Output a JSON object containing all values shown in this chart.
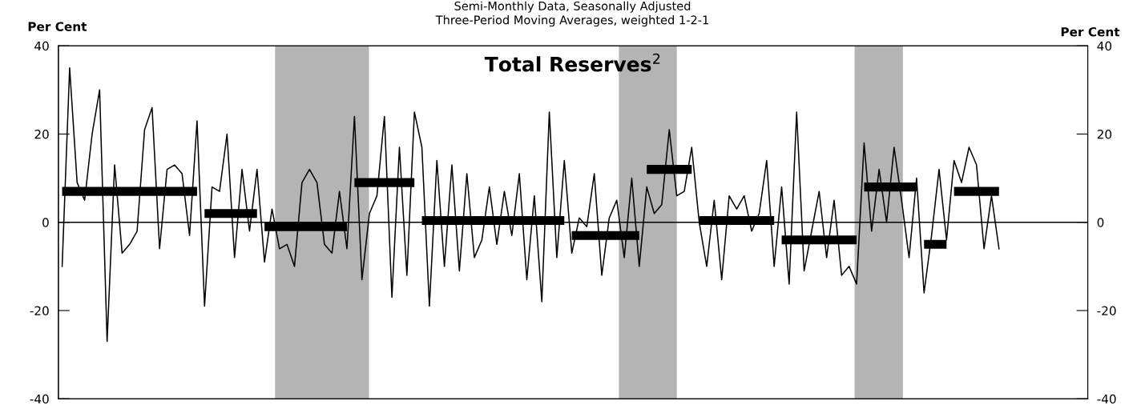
{
  "chart_data": {
    "type": "line",
    "title": "Total Reserves$^{2}$",
    "subtitle": "Semi-Monthly Data, Seasonally Adjusted\nThree-Period Moving Averages, weighted 1-2-1",
    "ylabel": "Per Cent",
    "y2label": "Per Cent",
    "categories": [
      null,
      null,
      null,
      null,
      null,
      null,
      null,
      null,
      null,
      null,
      null,
      null,
      null,
      null,
      null,
      null,
      null,
      null,
      null,
      null,
      null,
      null,
      null,
      null,
      null,
      null,
      null,
      null,
      null,
      null,
      null,
      null,
      null,
      null,
      null,
      null,
      null,
      null,
      null,
      null,
      null,
      null,
      null,
      null,
      null,
      null,
      null,
      null,
      null,
      null,
      null,
      null,
      null,
      null,
      null,
      null,
      null,
      null,
      null,
      null,
      null,
      null,
      null,
      null,
      null,
      null,
      null,
      null,
      null,
      null,
      null,
      null,
      null,
      null,
      null,
      null,
      null,
      null,
      null,
      null,
      null,
      null,
      null,
      null,
      null,
      null,
      null,
      null,
      null,
      null,
      null,
      null,
      null,
      null,
      null,
      null,
      null,
      null,
      null,
      null,
      null,
      null,
      null,
      null,
      null,
      null,
      null,
      null,
      null,
      null,
      null,
      null,
      null,
      null,
      null,
      null,
      null,
      null,
      null,
      null,
      null,
      null,
      null,
      null,
      null,
      null
    ],
    "ylim": [
      -40,
      40
    ],
    "yticks": [
      -40,
      -20,
      0,
      20,
      40
    ],
    "y2lim": [
      -40,
      40
    ],
    "y2ticks": [
      -40,
      -20,
      0,
      20,
      40
    ],
    "tick_labels": "y",
    "grid": false,
    "ref_lines": [
      {
        "axis": "y",
        "value": 0,
        "color": "#000000"
      }
    ],
    "series": [
      {
        "color": "#000000",
        "values": [
          -10,
          35,
          9,
          5,
          20,
          30,
          -27,
          13,
          -7,
          -5,
          -2,
          21,
          26,
          -6,
          12,
          13,
          11,
          -3,
          23,
          -19,
          8,
          7,
          20,
          -8,
          12,
          -2,
          12,
          -9,
          3,
          -6,
          -5,
          -10,
          9,
          12,
          9,
          -5,
          -7,
          7,
          -6,
          24,
          -13,
          2,
          6,
          24,
          -17,
          17,
          -12,
          25,
          17,
          -19,
          14,
          -10,
          13,
          -11,
          11,
          -8,
          -4,
          8,
          -5,
          7,
          -3,
          11,
          -13,
          6,
          -18,
          25,
          -8,
          14,
          -7,
          1,
          -1,
          11,
          -12,
          1,
          5,
          -8,
          10,
          -10,
          8,
          2,
          4,
          21,
          6,
          7,
          17,
          0,
          -10,
          5,
          -13,
          6,
          3,
          6,
          -2,
          2,
          14,
          -10,
          8,
          -14,
          25,
          -11,
          -2,
          7,
          -8,
          5,
          -12,
          -10,
          -14,
          18,
          -2,
          12,
          0,
          17,
          5,
          -8,
          10,
          -16,
          -3,
          12,
          -4,
          14,
          9,
          17,
          13,
          -6,
          6,
          -6
        ]
      },
      {
        "type": "step",
        "color": "#000000",
        "values": [
          7,
          7,
          7,
          7,
          7,
          7,
          7,
          7,
          7,
          7,
          7,
          7,
          7,
          7,
          7,
          7,
          7,
          7,
          7,
          2,
          2,
          2,
          2,
          2,
          2,
          2,
          2,
          -1,
          -1,
          -1,
          -1,
          -1,
          -1,
          -1,
          -1,
          -1,
          -1,
          -1,
          -1,
          9,
          9,
          9,
          9,
          9,
          9,
          9,
          9,
          9,
          0.4,
          0.4,
          0.4,
          0.4,
          0.4,
          0.4,
          0.4,
          0.4,
          0.4,
          0.4,
          0.4,
          0.4,
          0.4,
          0.4,
          0.4,
          0.4,
          0.4,
          0.4,
          0.4,
          0.4,
          -3,
          -3,
          -3,
          -3,
          -3,
          -3,
          -3,
          -3,
          -3,
          -3,
          12,
          12,
          12,
          12,
          12,
          12,
          12,
          0.4,
          0.4,
          0.4,
          0.4,
          0.4,
          0.4,
          0.4,
          0.4,
          0.4,
          0.4,
          0.4,
          -4,
          -4,
          -4,
          -4,
          -4,
          -4,
          -4,
          -4,
          -4,
          -4,
          -4,
          8,
          8,
          8,
          8,
          8,
          8,
          8,
          8,
          -5,
          -5,
          -5,
          -5,
          7,
          7,
          7,
          7,
          7,
          7,
          7
        ]
      }
    ]
  }
}
